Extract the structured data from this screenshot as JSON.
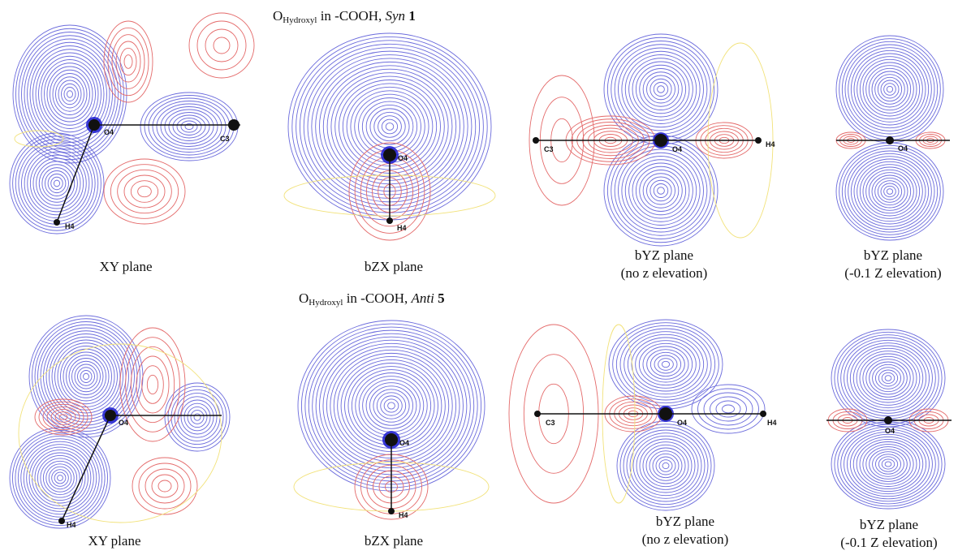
{
  "rows": [
    {
      "title_prefix": "O",
      "title_sub": "Hydroxyl",
      "title_mid": " in -COOH, ",
      "title_italic": "Syn",
      "title_num": " 1",
      "panels": [
        {
          "caption": [
            "XY plane"
          ],
          "labels": {
            "center": "O4",
            "a": "C3",
            "b": "H4"
          }
        },
        {
          "caption": [
            "bZX plane"
          ],
          "labels": {
            "center": "O4",
            "b": "H4"
          }
        },
        {
          "caption": [
            "bYZ plane",
            "(no z elevation)"
          ],
          "labels": {
            "a": "C3",
            "center": "O4",
            "b": "H4"
          }
        },
        {
          "caption": [
            "bYZ plane",
            "(-0.1 Z elevation)"
          ],
          "labels": {
            "center": "O4"
          }
        }
      ]
    },
    {
      "title_prefix": "O",
      "title_sub": "Hydroxyl",
      "title_mid": " in -COOH, ",
      "title_italic": "Anti",
      "title_num": " 5",
      "panels": [
        {
          "caption": [
            "XY plane"
          ],
          "labels": {
            "center": "O4",
            "b": "H4"
          }
        },
        {
          "caption": [
            "bZX plane"
          ],
          "labels": {
            "center": "O4",
            "b": "H4"
          }
        },
        {
          "caption": [
            "bYZ plane",
            "(no z elevation)"
          ],
          "labels": {
            "a": "C3",
            "center": "O4",
            "b": "H4"
          }
        },
        {
          "caption": [
            "bYZ plane",
            "(-0.1 Z elevation)"
          ],
          "labels": {
            "center": "O4"
          }
        }
      ]
    }
  ],
  "colors": {
    "negative": "#6b6bdc",
    "positive": "#e46a6a",
    "zero": "#f2e27a",
    "core": "#1a1ad0"
  }
}
